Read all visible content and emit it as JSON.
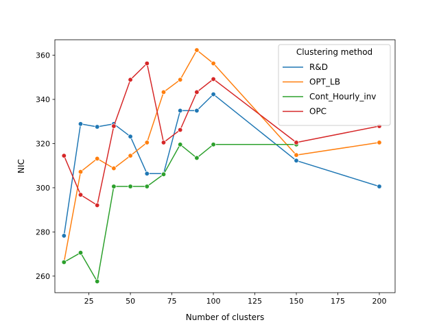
{
  "chart_data": {
    "type": "line",
    "xlabel": "Number of clusters",
    "ylabel": "NIC",
    "xlim": [
      4.5,
      209.5
    ],
    "ylim": [
      252.5,
      367.0
    ],
    "x_ticks": [
      25,
      50,
      75,
      100,
      125,
      150,
      175,
      200
    ],
    "y_ticks": [
      260,
      280,
      300,
      320,
      340,
      360
    ],
    "grid": false,
    "legend": {
      "title": "Clustering method",
      "placement": "upper right"
    },
    "x": [
      10,
      20,
      30,
      40,
      50,
      60,
      70,
      80,
      90,
      100,
      150,
      200
    ],
    "series": [
      {
        "name": "R&D",
        "color": "#1f77b4",
        "values": [
          278.3,
          328.9,
          327.6,
          328.9,
          323.2,
          306.4,
          306.4,
          334.9,
          334.9,
          342.3,
          312.3,
          300.6
        ]
      },
      {
        "name": "OPT_LB",
        "color": "#ff7f0e",
        "values": [
          266.3,
          307.2,
          313.2,
          308.8,
          314.5,
          320.5,
          343.3,
          348.9,
          362.3,
          356.3,
          314.8,
          320.5
        ]
      },
      {
        "name": "Cont_Hourly_inv",
        "color": "#2ca02c",
        "values": [
          266.3,
          270.6,
          257.6,
          300.6,
          300.6,
          300.6,
          306.1,
          319.6,
          313.5,
          319.6,
          319.6,
          null
        ]
      },
      {
        "name": "OPC",
        "color": "#d62728",
        "values": [
          314.5,
          296.8,
          292.1,
          327.9,
          348.9,
          356.3,
          320.5,
          326.2,
          343.3,
          349.2,
          320.5,
          327.9
        ]
      }
    ]
  }
}
